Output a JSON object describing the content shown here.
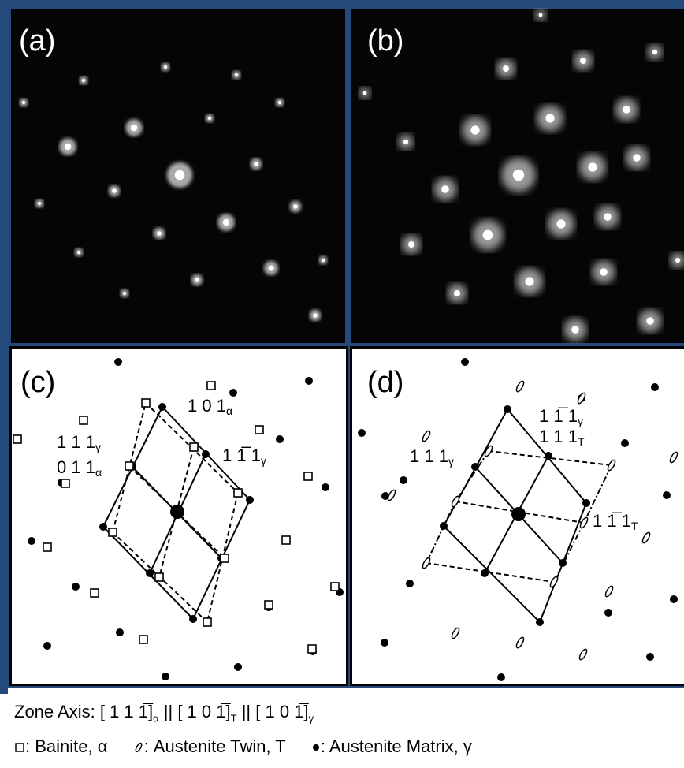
{
  "panels": [
    {
      "label": "(a)"
    },
    {
      "label": "(b)"
    },
    {
      "label": "(c)",
      "annotations": [
        {
          "indices": "1 0 1",
          "subscript": "α"
        },
        {
          "indices": "1 1 1",
          "subscript": "γ"
        },
        {
          "indices": "0 1 1",
          "subscript": "α"
        },
        {
          "indices": "1 1̅ 1",
          "subscript": "γ"
        }
      ]
    },
    {
      "label": "(d)",
      "annotations": [
        {
          "indices": "1 1̅ 1",
          "subscript": "γ"
        },
        {
          "indices": "1 1 1",
          "subscript": "T"
        },
        {
          "indices": "1 1 1",
          "subscript": "γ"
        },
        {
          "indices": "1 1̅ 1",
          "subscript": "T"
        }
      ]
    }
  ],
  "zone_axis": {
    "label": "Zone Axis:",
    "separator": "||",
    "parts": [
      {
        "indices": "[ 1 1 1̅]",
        "subscript": "α"
      },
      {
        "indices": "[ 1 0 1̅]",
        "subscript": "T"
      },
      {
        "indices": "[ 1 0 1̅]",
        "subscript": "γ"
      }
    ]
  },
  "legend": [
    {
      "label": ": Bainite, α"
    },
    {
      "label": ": Austenite Twin, T"
    },
    {
      "label": ": Austenite Matrix, γ"
    }
  ]
}
